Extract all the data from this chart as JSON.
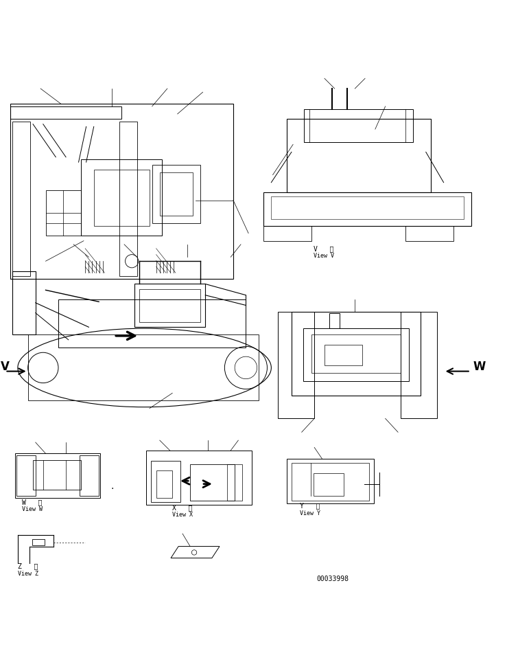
{
  "bg_color": "#ffffff",
  "line_color": "#000000",
  "page_num": "00033998",
  "view_v_label": [
    "V   視",
    "View V"
  ],
  "view_w_label": [
    "W   視",
    "View W"
  ],
  "view_x_label": [
    "X   視",
    "View X"
  ],
  "view_y_label": [
    "Y   視",
    "View Y"
  ],
  "view_z_label": [
    "Z   視",
    "View Z"
  ],
  "arrow_v_label": "V",
  "arrow_w_label": "W"
}
